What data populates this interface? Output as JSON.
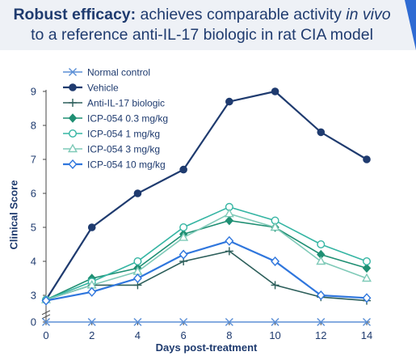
{
  "header": {
    "bold": "Robust efficacy:",
    "part1": " achieves comparable activity ",
    "italic": "in vivo",
    "line2": "to a reference anti-IL-17 biologic in rat CIA model"
  },
  "colors": {
    "title_text": "#1f3b6f",
    "title_band": "#eef1f6",
    "accent": "#2f6bd3"
  },
  "chart_data": {
    "type": "line",
    "xlabel": "Days post-treatment",
    "ylabel": "Clinical Score",
    "x": [
      0,
      2,
      4,
      6,
      8,
      10,
      12,
      14
    ],
    "xlim": [
      0,
      14
    ],
    "ylim": [
      0,
      9
    ],
    "yticks": [
      0,
      3,
      4,
      5,
      6,
      7,
      8,
      9
    ],
    "axis_break": "between 0 and 3 on the y axis",
    "grid": false,
    "legend_position": "top-left",
    "series": [
      {
        "name": "Normal control",
        "color": "#5b8fd6",
        "marker": "x",
        "values": [
          0,
          0,
          0,
          0,
          0,
          0,
          0,
          0
        ]
      },
      {
        "name": "Vehicle",
        "color": "#1f3b6f",
        "marker": "filled-circle",
        "values": [
          2.5,
          5,
          6,
          6.7,
          8.7,
          9,
          7.8,
          7
        ]
      },
      {
        "name": "Anti-IL-17 biologic",
        "color": "#2d5f5b",
        "marker": "plus",
        "values": [
          2.5,
          3.3,
          3.3,
          4,
          4.3,
          3.3,
          2.8,
          2.4
        ]
      },
      {
        "name": "ICP-054 0.3 mg/kg",
        "color": "#1f8f73",
        "marker": "filled-diamond",
        "values": [
          2.5,
          3.5,
          3.8,
          4.8,
          5.2,
          5,
          4.2,
          3.8
        ]
      },
      {
        "name": "ICP-054 1 mg/kg",
        "color": "#35b5a3",
        "marker": "open-circle",
        "values": [
          2.5,
          3.4,
          4,
          5,
          5.6,
          5.2,
          4.5,
          4
        ]
      },
      {
        "name": "ICP-054 3 mg/kg",
        "color": "#7fcab8",
        "marker": "open-triangle",
        "values": [
          2.5,
          3.3,
          3.7,
          4.7,
          5.4,
          5,
          4,
          3.5
        ]
      },
      {
        "name": "ICP-054 10 mg/kg",
        "color": "#2f76dd",
        "marker": "open-diamond",
        "values": [
          2.4,
          3.1,
          3.5,
          4.2,
          4.6,
          4,
          3,
          2.7
        ]
      }
    ]
  }
}
